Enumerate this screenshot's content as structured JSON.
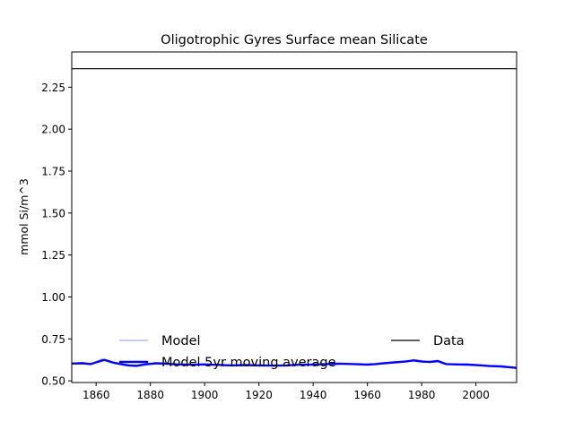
{
  "chart_data": {
    "type": "line",
    "title": "Oligotrophic Gyres Surface mean Silicate",
    "xlabel": "",
    "ylabel": "mmol Si/m^3",
    "xlim": [
      1851,
      2015
    ],
    "ylim": [
      0.49,
      2.46
    ],
    "xticks": [
      1860,
      1880,
      1900,
      1920,
      1940,
      1960,
      1980,
      2000
    ],
    "yticks": [
      0.5,
      0.75,
      1.0,
      1.25,
      1.5,
      1.75,
      2.0,
      2.25
    ],
    "ytick_labels": [
      "0.50",
      "0.75",
      "1.00",
      "1.25",
      "1.50",
      "1.75",
      "2.00",
      "2.25"
    ],
    "grid": false,
    "legend": {
      "placement": "lower center",
      "entries": [
        "Model",
        "Model 5yr moving average",
        "Data"
      ]
    },
    "series": [
      {
        "name": "Model",
        "color": "#a9a9f5",
        "x": [
          1851,
          1855,
          1858,
          1862,
          1864,
          1866,
          1870,
          1874,
          1878,
          1882,
          1886,
          1890,
          1895,
          1900,
          1905,
          1910,
          1915,
          1920,
          1925,
          1930,
          1935,
          1940,
          1945,
          1950,
          1955,
          1960,
          1965,
          1970,
          1975,
          1978,
          1982,
          1985,
          1988,
          1992,
          1996,
          2000,
          2005,
          2010,
          2015
        ],
        "y": [
          0.604,
          0.61,
          0.6,
          0.63,
          0.62,
          0.605,
          0.6,
          0.585,
          0.595,
          0.605,
          0.6,
          0.598,
          0.595,
          0.6,
          0.594,
          0.59,
          0.595,
          0.59,
          0.592,
          0.59,
          0.6,
          0.595,
          0.6,
          0.602,
          0.598,
          0.596,
          0.605,
          0.61,
          0.62,
          0.625,
          0.615,
          0.62,
          0.6,
          0.598,
          0.6,
          0.595,
          0.585,
          0.59,
          0.575
        ]
      },
      {
        "name": "Model 5yr moving average",
        "color": "#0000ff",
        "x": [
          1851,
          1855,
          1858,
          1860,
          1863,
          1866,
          1869,
          1872,
          1875,
          1878,
          1882,
          1886,
          1890,
          1895,
          1900,
          1905,
          1910,
          1915,
          1920,
          1925,
          1930,
          1935,
          1940,
          1945,
          1950,
          1955,
          1960,
          1963,
          1966,
          1970,
          1974,
          1977,
          1980,
          1983,
          1986,
          1989,
          1993,
          1997,
          2001,
          2005,
          2009,
          2012,
          2015
        ],
        "y": [
          0.603,
          0.605,
          0.6,
          0.61,
          0.625,
          0.61,
          0.6,
          0.592,
          0.59,
          0.598,
          0.605,
          0.602,
          0.598,
          0.596,
          0.598,
          0.595,
          0.592,
          0.594,
          0.592,
          0.591,
          0.592,
          0.596,
          0.597,
          0.6,
          0.602,
          0.6,
          0.597,
          0.6,
          0.605,
          0.61,
          0.615,
          0.622,
          0.615,
          0.612,
          0.618,
          0.6,
          0.598,
          0.597,
          0.593,
          0.588,
          0.586,
          0.582,
          0.577
        ]
      },
      {
        "name": "Data",
        "color": "#000000",
        "x": [
          1851,
          2015
        ],
        "y": [
          2.36,
          2.36
        ]
      }
    ]
  }
}
